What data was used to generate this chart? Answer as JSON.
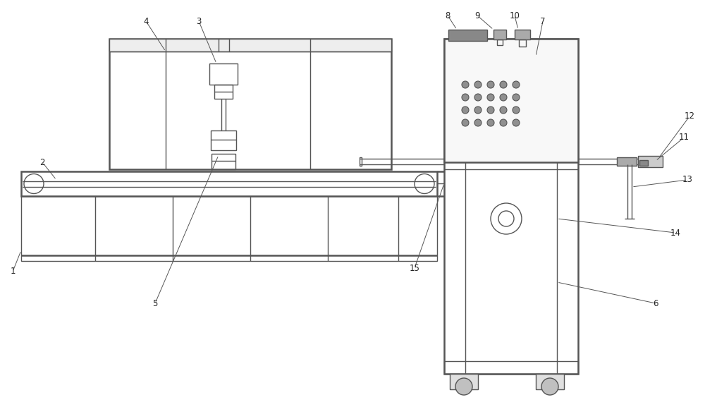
{
  "bg_color": "#ffffff",
  "line_color": "#555555",
  "line_width": 1.0,
  "thick_line": 1.8,
  "label_color": "#222222",
  "label_fontsize": 8.5,
  "fig_width": 10.0,
  "fig_height": 5.77
}
